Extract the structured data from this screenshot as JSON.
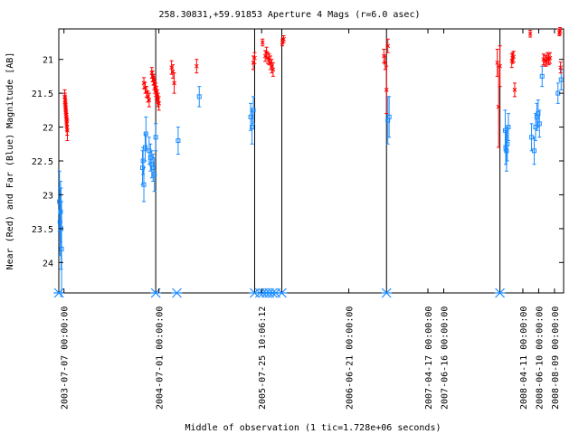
{
  "chart_data": {
    "type": "scatter",
    "title": "258.30831,+59.91853   Aperture 4 Mags (r=6.0 asec)",
    "xlabel": "Middle of observation (1 tic=1.728e+06 seconds)",
    "ylabel": "Near (Red) and Far (Blue) Magnitude [AB]",
    "x_unit": "MJD",
    "xlim": [
      52807.5,
      54721.5
    ],
    "ylim": [
      24.45,
      20.55
    ],
    "y_ticks": [
      21,
      21.5,
      22,
      22.5,
      23,
      23.5,
      24
    ],
    "y_tick_labels": [
      "21",
      "21.5",
      "22",
      "22.5",
      "23",
      "23.5",
      "24"
    ],
    "x_ticks": [
      {
        "x": 52827,
        "label": "2003-07-07 00:00:00"
      },
      {
        "x": 53187,
        "label": "2004-07-01 00:00:00"
      },
      {
        "x": 53576.43,
        "label": "2005-07-25 10:06:12"
      },
      {
        "x": 53907,
        "label": "2006-06-21 00:00:00"
      },
      {
        "x": 54207,
        "label": "2007-04-17 00:00:00"
      },
      {
        "x": 54267,
        "label": "2007-06-16 00:00:00"
      },
      {
        "x": 54567,
        "label": "2008-04-11 00:00:00"
      },
      {
        "x": 54627,
        "label": "2008-06-10 00:00:00"
      },
      {
        "x": 54687,
        "label": "2008-08-09 00:00:00"
      }
    ],
    "vertical_lines": [
      53175,
      53550,
      53653,
      54050,
      54480
    ],
    "star_markers": [
      52807.8,
      53175,
      53255,
      53550,
      53570,
      53582,
      53594,
      53606,
      53618,
      53630,
      53653,
      54050,
      54480
    ],
    "grid": false,
    "series": [
      {
        "name": "Near",
        "color": "#ff0000",
        "marker": "x",
        "points": [
          [
            52830,
            21.55,
            0.1
          ],
          [
            52831,
            21.6,
            0.1
          ],
          [
            52832,
            21.65,
            0.1
          ],
          [
            52833,
            21.7,
            0.1
          ],
          [
            52834,
            21.75,
            0.1
          ],
          [
            52835,
            21.8,
            0.1
          ],
          [
            52836,
            21.85,
            0.1
          ],
          [
            52837,
            21.9,
            0.1
          ],
          [
            52838,
            21.95,
            0.1
          ],
          [
            52839,
            22.0,
            0.12
          ],
          [
            52840,
            22.05,
            0.15
          ],
          [
            53130,
            21.35,
            0.08
          ],
          [
            53135,
            21.42,
            0.08
          ],
          [
            53140,
            21.48,
            0.08
          ],
          [
            53145,
            21.55,
            0.08
          ],
          [
            53150,
            21.6,
            0.1
          ],
          [
            53160,
            21.2,
            0.08
          ],
          [
            53163,
            21.25,
            0.08
          ],
          [
            53166,
            21.3,
            0.08
          ],
          [
            53169,
            21.35,
            0.1
          ],
          [
            53172,
            21.4,
            0.1
          ],
          [
            53175,
            21.45,
            0.1
          ],
          [
            53178,
            21.5,
            0.1
          ],
          [
            53181,
            21.55,
            0.1
          ],
          [
            53184,
            21.6,
            0.1
          ],
          [
            53187,
            21.65,
            0.1
          ],
          [
            53235,
            21.12,
            0.1
          ],
          [
            53240,
            21.18,
            0.1
          ],
          [
            53245,
            21.35,
            0.15
          ],
          [
            53330,
            21.1,
            0.1
          ],
          [
            53545,
            21.05,
            0.1
          ],
          [
            53550,
            20.98,
            0.08
          ],
          [
            53580,
            20.75,
            0.05
          ],
          [
            53590,
            20.95,
            0.08
          ],
          [
            53595,
            20.9,
            0.08
          ],
          [
            53600,
            20.98,
            0.08
          ],
          [
            53605,
            21.0,
            0.08
          ],
          [
            53610,
            21.05,
            0.1
          ],
          [
            53615,
            21.1,
            0.1
          ],
          [
            53620,
            21.15,
            0.1
          ],
          [
            53655,
            20.75,
            0.05
          ],
          [
            53660,
            20.7,
            0.05
          ],
          [
            54040,
            20.95,
            0.1
          ],
          [
            54045,
            21.05,
            0.1
          ],
          [
            54050,
            21.45,
            0.35
          ],
          [
            54055,
            20.8,
            0.1
          ],
          [
            54470,
            21.05,
            0.2
          ],
          [
            54475,
            21.7,
            0.6
          ],
          [
            54480,
            21.1,
            0.3
          ],
          [
            54525,
            21.02,
            0.1
          ],
          [
            54528,
            20.98,
            0.08
          ],
          [
            54532,
            20.96,
            0.08
          ],
          [
            54536,
            21.45,
            0.1
          ],
          [
            54645,
            21.0,
            0.08
          ],
          [
            54650,
            21.02,
            0.08
          ],
          [
            54655,
            21.02,
            0.08
          ],
          [
            54660,
            20.98,
            0.08
          ],
          [
            54665,
            21.0,
            0.08
          ],
          [
            54670,
            20.98,
            0.08
          ],
          [
            54710,
            21.12,
            0.08
          ],
          [
            54595,
            20.62,
            0.05
          ],
          [
            54705,
            20.6,
            0.05
          ],
          [
            54708,
            20.58,
            0.05
          ]
        ]
      },
      {
        "name": "Far",
        "color": "#1a8cff",
        "marker": "square",
        "points": [
          [
            52810,
            23.1,
            0.45
          ],
          [
            52812,
            23.4,
            0.5
          ],
          [
            52814,
            23.25,
            0.45
          ],
          [
            52816,
            23.5,
            0.6
          ],
          [
            52818,
            23.8,
            0.7
          ],
          [
            53125,
            22.6,
            0.25
          ],
          [
            53127,
            22.5,
            0.2
          ],
          [
            53130,
            22.85,
            0.25
          ],
          [
            53135,
            22.3,
            0.2
          ],
          [
            53138,
            22.1,
            0.25
          ],
          [
            53150,
            22.35,
            0.2
          ],
          [
            53155,
            22.45,
            0.2
          ],
          [
            53160,
            22.55,
            0.2
          ],
          [
            53165,
            22.6,
            0.2
          ],
          [
            53170,
            22.7,
            0.25
          ],
          [
            53175,
            22.15,
            0.2
          ],
          [
            53260,
            22.2,
            0.2
          ],
          [
            53340,
            21.55,
            0.15
          ],
          [
            53535,
            21.85,
            0.2
          ],
          [
            53540,
            22.0,
            0.25
          ],
          [
            53545,
            21.75,
            0.2
          ],
          [
            54055,
            21.9,
            0.35
          ],
          [
            54060,
            21.85,
            0.3
          ],
          [
            54500,
            22.05,
            0.3
          ],
          [
            54502,
            22.3,
            0.25
          ],
          [
            54505,
            22.35,
            0.3
          ],
          [
            54508,
            22.25,
            0.25
          ],
          [
            54512,
            22.0,
            0.2
          ],
          [
            54610,
            22.35,
            0.2
          ],
          [
            54615,
            22.0,
            0.2
          ],
          [
            54620,
            21.85,
            0.2
          ],
          [
            54625,
            21.8,
            0.2
          ],
          [
            54630,
            21.95,
            0.2
          ],
          [
            54600,
            22.15,
            0.2
          ],
          [
            54640,
            21.25,
            0.15
          ],
          [
            54700,
            21.5,
            0.15
          ],
          [
            54712,
            21.3,
            0.15
          ]
        ]
      }
    ]
  }
}
